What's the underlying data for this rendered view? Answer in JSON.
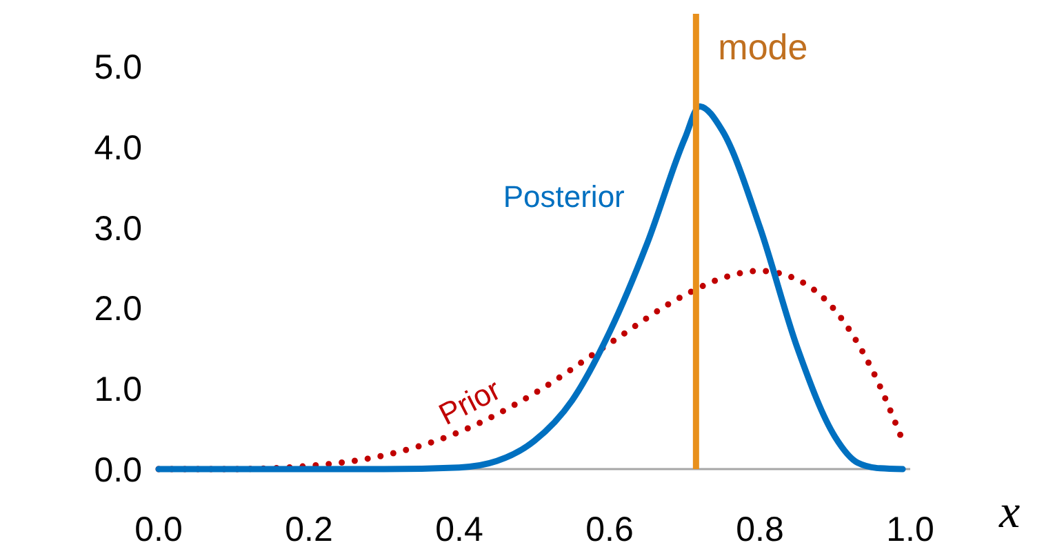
{
  "chart_data": {
    "type": "line",
    "xlabel": "x",
    "xlim": [
      0,
      1
    ],
    "ylim": [
      0,
      5.65
    ],
    "xticks": [
      {
        "value": 0,
        "label": "0.0"
      },
      {
        "value": 0.2,
        "label": "0.2"
      },
      {
        "value": 0.4,
        "label": "0.4"
      },
      {
        "value": 0.6,
        "label": "0.6"
      },
      {
        "value": 0.8,
        "label": "0.8"
      },
      {
        "value": 1,
        "label": "1.0"
      }
    ],
    "yticks": [
      {
        "value": 0,
        "label": "0.0"
      },
      {
        "value": 1,
        "label": "1.0"
      },
      {
        "value": 2,
        "label": "2.0"
      },
      {
        "value": 3,
        "label": "3.0"
      },
      {
        "value": 4,
        "label": "4.0"
      },
      {
        "value": 5,
        "label": "5.0"
      }
    ],
    "grid": false,
    "marker": "none",
    "series": [
      {
        "name": "Prior",
        "color": "#c00000",
        "line_style": "dotted",
        "x": [
          0,
          0.1,
          0.2,
          0.3,
          0.4,
          0.5,
          0.6,
          0.7,
          0.75,
          0.8,
          0.85,
          0.9,
          0.95,
          0.99
        ],
        "values": [
          0,
          0,
          0.04,
          0.17,
          0.46,
          0.94,
          1.56,
          2.16,
          2.37,
          2.46,
          2.35,
          1.97,
          1.22,
          0.35
        ]
      },
      {
        "name": "Posterior",
        "color": "#0070c0",
        "line_style": "solid",
        "x": [
          0,
          0.3,
          0.4,
          0.45,
          0.5,
          0.55,
          0.6,
          0.65,
          0.7,
          0.72,
          0.75,
          0.8,
          0.85,
          0.9,
          0.93,
          0.96,
          0.99
        ],
        "values": [
          0,
          0,
          0.02,
          0.1,
          0.35,
          0.85,
          1.7,
          2.8,
          4.1,
          4.5,
          4.2,
          3.0,
          1.5,
          0.4,
          0.08,
          0.01,
          0
        ]
      }
    ],
    "ref_lines": [
      {
        "axis": "x",
        "value": 0.715,
        "label": "mode",
        "color": "#e8901c"
      }
    ]
  }
}
